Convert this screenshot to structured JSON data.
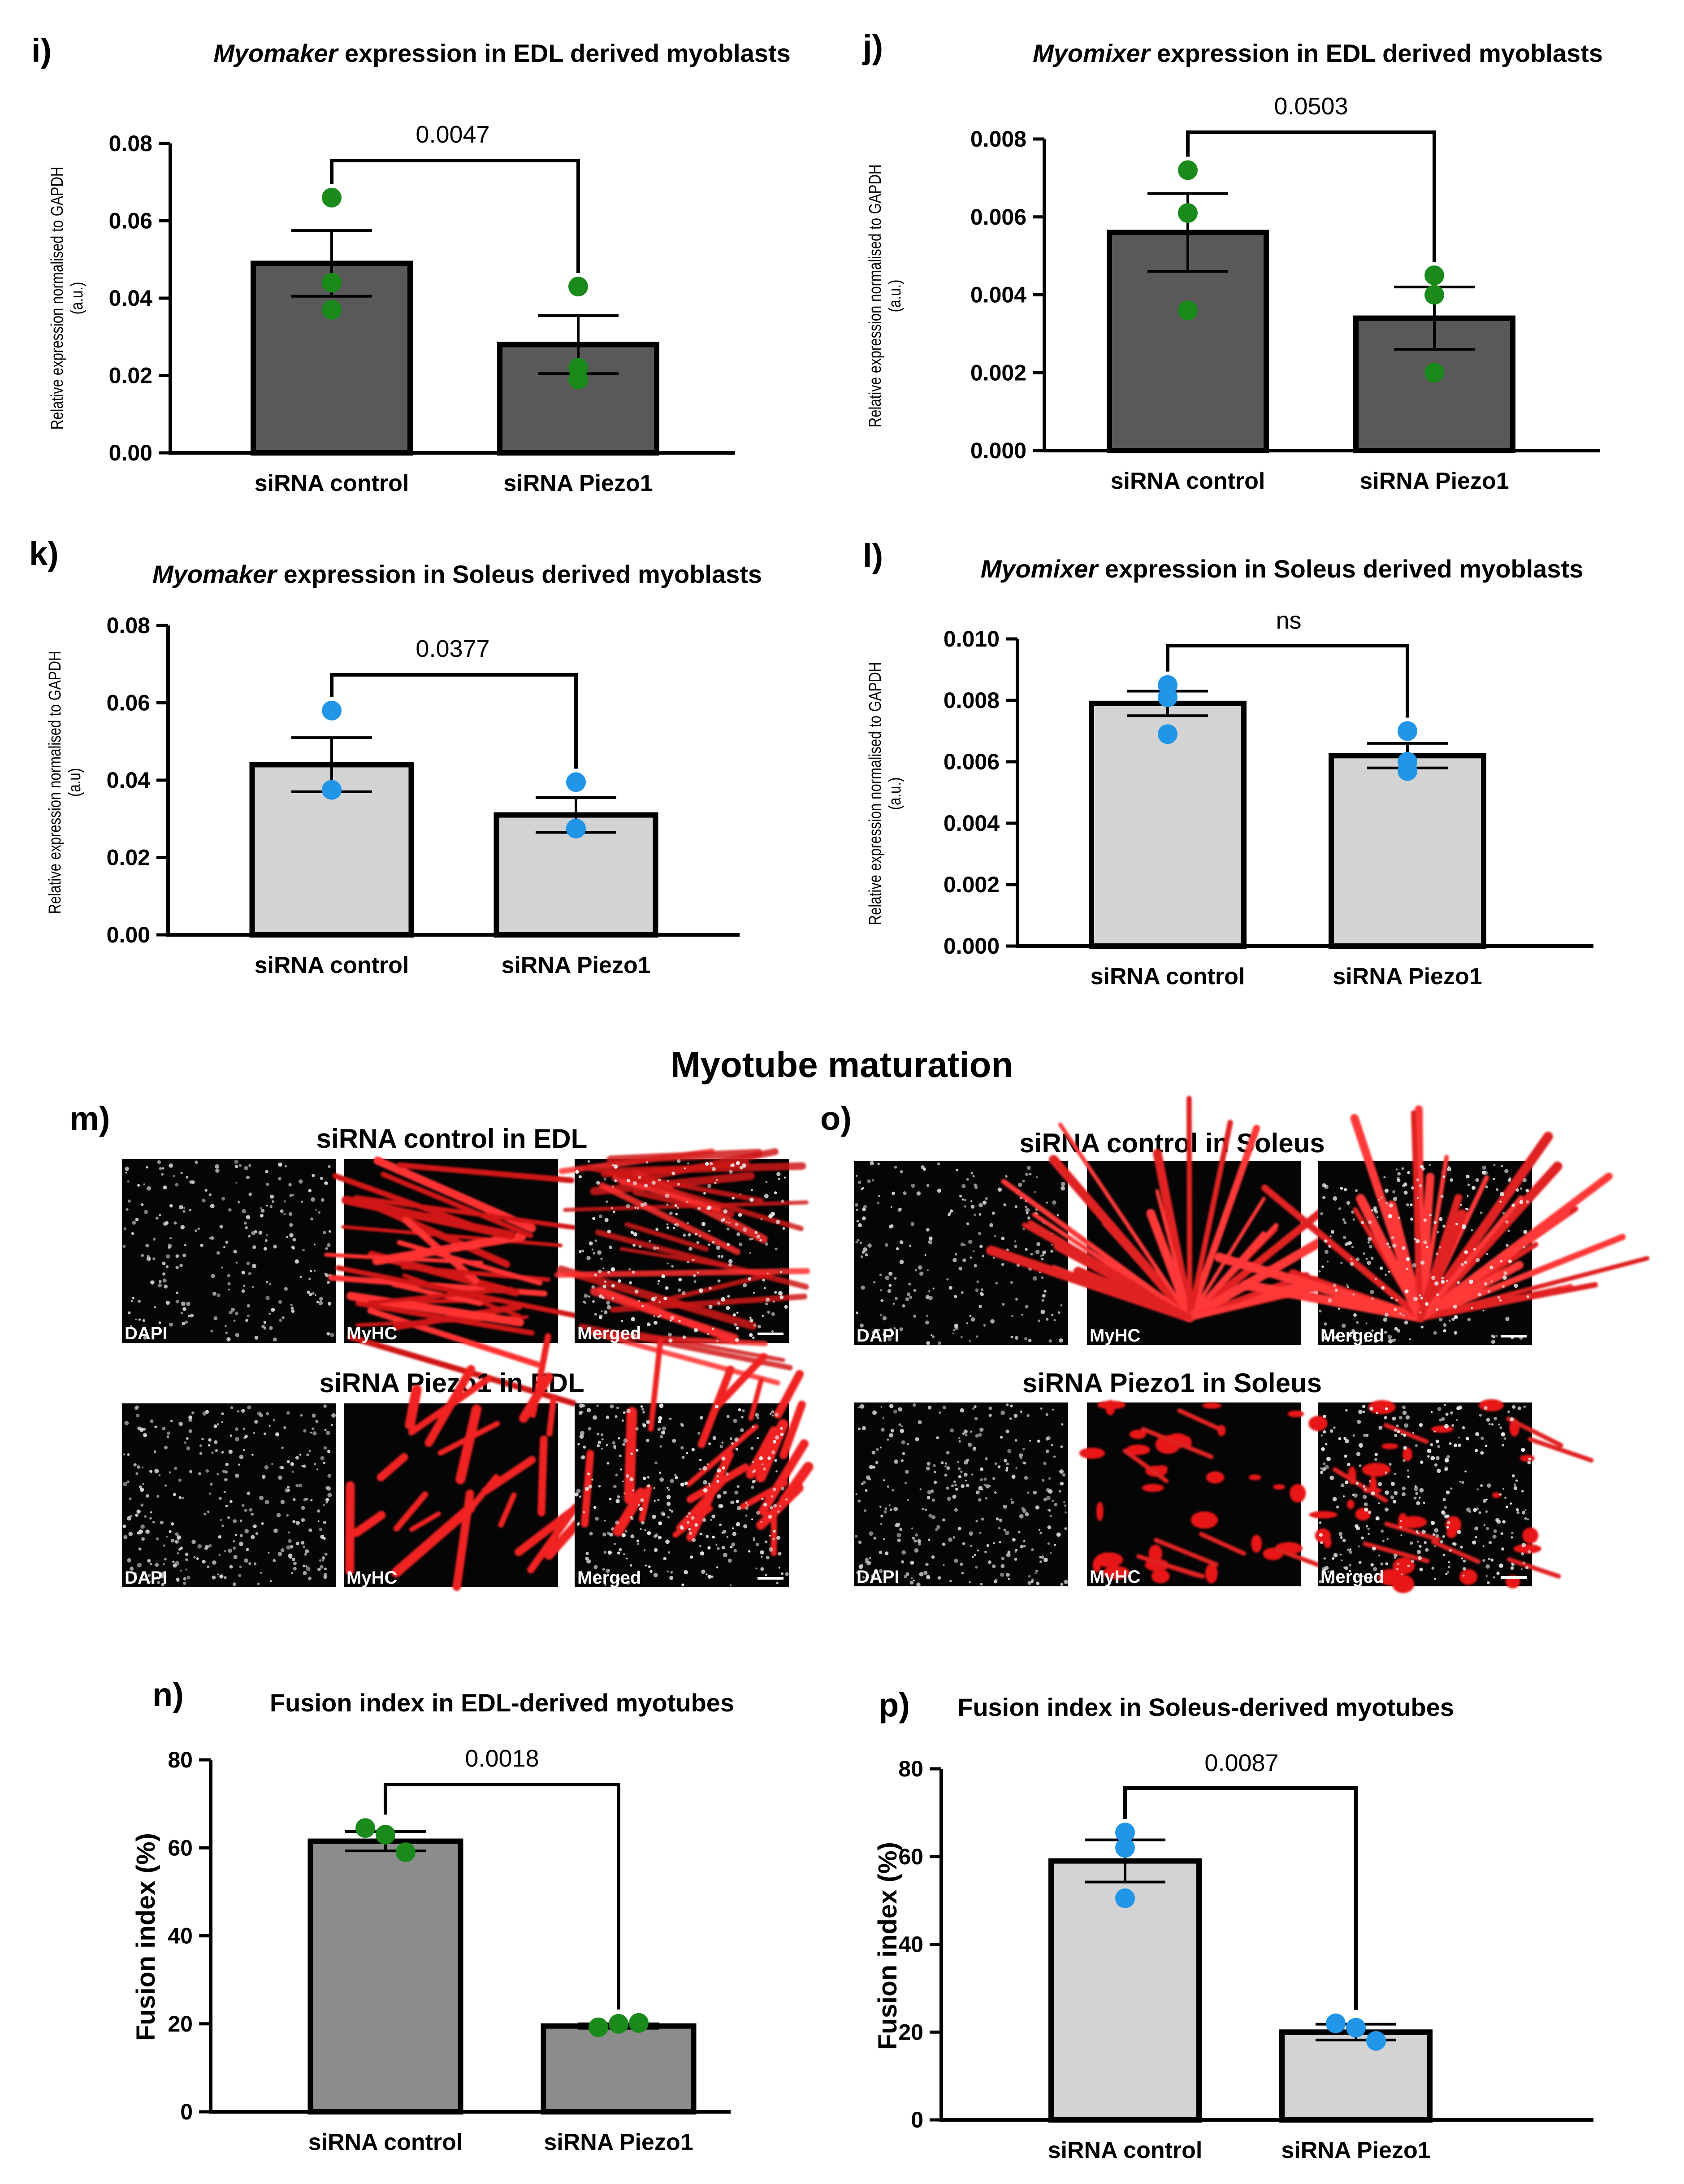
{
  "section_title": "Myotube maturation",
  "colors": {
    "green_dot": "#1a8a1a",
    "blue_dot": "#2196e8",
    "dark_bar": "#595959",
    "mid_bar": "#8c8c8c",
    "light_bar": "#d3d3d3",
    "myhc_red": "#e01010"
  },
  "chart_data": [
    {
      "id": "i",
      "letter": "i)",
      "type": "bar",
      "title_italic": "Myomaker",
      "title_rest": " expression in EDL derived myoblasts",
      "ylabel_lines": [
        "Relative expression normalised to GAPDH",
        "(a.u.)"
      ],
      "categories": [
        "siRNA control",
        "siRNA Piezo1"
      ],
      "values": [
        0.049,
        0.028
      ],
      "sem": [
        0.0085,
        0.0075
      ],
      "points": [
        [
          0.066,
          0.044,
          0.037
        ],
        [
          0.043,
          0.022,
          0.019
        ]
      ],
      "ylim": [
        0,
        0.08
      ],
      "yticks": [
        "0.00",
        "0.02",
        "0.04",
        "0.06",
        "0.08"
      ],
      "significance": "0.0047",
      "bar_fill": "dark",
      "dot_color": "green"
    },
    {
      "id": "j",
      "letter": "j)",
      "type": "bar",
      "title_italic": "Myomixer",
      "title_rest": " expression in EDL derived myoblasts",
      "ylabel_lines": [
        "Relative expression normalised to GAPDH",
        "(a.u.)"
      ],
      "categories": [
        "siRNA control",
        "siRNA Piezo1"
      ],
      "values": [
        0.0056,
        0.0034
      ],
      "sem": [
        0.001,
        0.0008
      ],
      "points": [
        [
          0.0072,
          0.0061,
          0.0036
        ],
        [
          0.0045,
          0.004,
          0.002
        ]
      ],
      "ylim": [
        0,
        0.008
      ],
      "yticks": [
        "0.000",
        "0.002",
        "0.004",
        "0.006",
        "0.008"
      ],
      "significance": "0.0503",
      "bar_fill": "dark",
      "dot_color": "green"
    },
    {
      "id": "k",
      "letter": "k)",
      "type": "bar",
      "title_italic": "Myomaker",
      "title_rest": " expression in Soleus derived myoblasts",
      "ylabel_lines": [
        "Relative expression normalised to GAPDH",
        "(a.u)"
      ],
      "categories": [
        "siRNA control",
        "siRNA Piezo1"
      ],
      "values": [
        0.044,
        0.031
      ],
      "sem": [
        0.007,
        0.0045
      ],
      "points": [
        [
          0.058,
          0.0375,
          0.0375
        ],
        [
          0.0395,
          0.0275,
          0.0275
        ]
      ],
      "ylim": [
        0,
        0.08
      ],
      "yticks": [
        "0.00",
        "0.02",
        "0.04",
        "0.06",
        "0.08"
      ],
      "significance": "0.0377",
      "bar_fill": "light",
      "dot_color": "blue"
    },
    {
      "id": "l",
      "letter": "l)",
      "type": "bar",
      "title_italic": "Myomixer",
      "title_rest": " expression in Soleus derived myoblasts",
      "ylabel_lines": [
        "Relative expression normalised to GAPDH",
        "(a.u.)"
      ],
      "categories": [
        "siRNA control",
        "siRNA Piezo1"
      ],
      "values": [
        0.0079,
        0.0062
      ],
      "sem": [
        0.0004,
        0.0004
      ],
      "points": [
        [
          0.0085,
          0.0081,
          0.0069
        ],
        [
          0.007,
          0.006,
          0.0057
        ]
      ],
      "ylim": [
        0,
        0.01
      ],
      "yticks": [
        "0.000",
        "0.002",
        "0.004",
        "0.006",
        "0.008",
        "0.010"
      ],
      "significance": "ns",
      "bar_fill": "light",
      "dot_color": "blue"
    },
    {
      "id": "n",
      "letter": "n)",
      "type": "bar",
      "title_italic": "",
      "title_rest": "Fusion index in EDL-derived myotubes",
      "ylabel_lines": [
        "Fusion index (%)"
      ],
      "categories": [
        "siRNA control",
        "siRNA Piezo1"
      ],
      "values": [
        61.5,
        19.5
      ],
      "sem": [
        2.2,
        0.5
      ],
      "points": [
        [
          64.5,
          63,
          59
        ],
        [
          19.2,
          20,
          20.2
        ]
      ],
      "ylim": [
        0,
        80
      ],
      "yticks": [
        "0",
        "20",
        "40",
        "60",
        "80"
      ],
      "significance": "0.0018",
      "bar_fill": "mid",
      "dot_color": "green"
    },
    {
      "id": "p",
      "letter": "p)",
      "type": "bar",
      "title_italic": "",
      "title_rest": "Fusion index in Soleus-derived myotubes",
      "ylabel_lines": [
        "Fusion index (%)"
      ],
      "categories": [
        "siRNA control",
        "siRNA Piezo1"
      ],
      "values": [
        59,
        20
      ],
      "sem": [
        4.8,
        1.8
      ],
      "points": [
        [
          65.5,
          62,
          50.5
        ],
        [
          22,
          21,
          18
        ]
      ],
      "ylim": [
        0,
        80
      ],
      "yticks": [
        "0",
        "20",
        "40",
        "60",
        "80"
      ],
      "significance": "0.0087",
      "bar_fill": "light",
      "dot_color": "blue"
    }
  ],
  "micrographs": [
    {
      "id": "m",
      "letter": "m)",
      "rows": [
        {
          "title": "siRNA control in EDL",
          "panels": [
            "DAPI",
            "MyHC",
            "Merged"
          ],
          "pattern": "fibers"
        },
        {
          "title": "siRNA Piezo1 in EDL",
          "panels": [
            "DAPI",
            "MyHC",
            "Merged"
          ],
          "pattern": "sparse"
        }
      ]
    },
    {
      "id": "o",
      "letter": "o)",
      "rows": [
        {
          "title": "siRNA control in Soleus",
          "panels": [
            "DAPI",
            "MyHC",
            "Merged"
          ],
          "pattern": "fan"
        },
        {
          "title": "siRNA Piezo1 in Soleus",
          "panels": [
            "DAPI",
            "MyHC",
            "Merged"
          ],
          "pattern": "blobs"
        }
      ]
    }
  ]
}
